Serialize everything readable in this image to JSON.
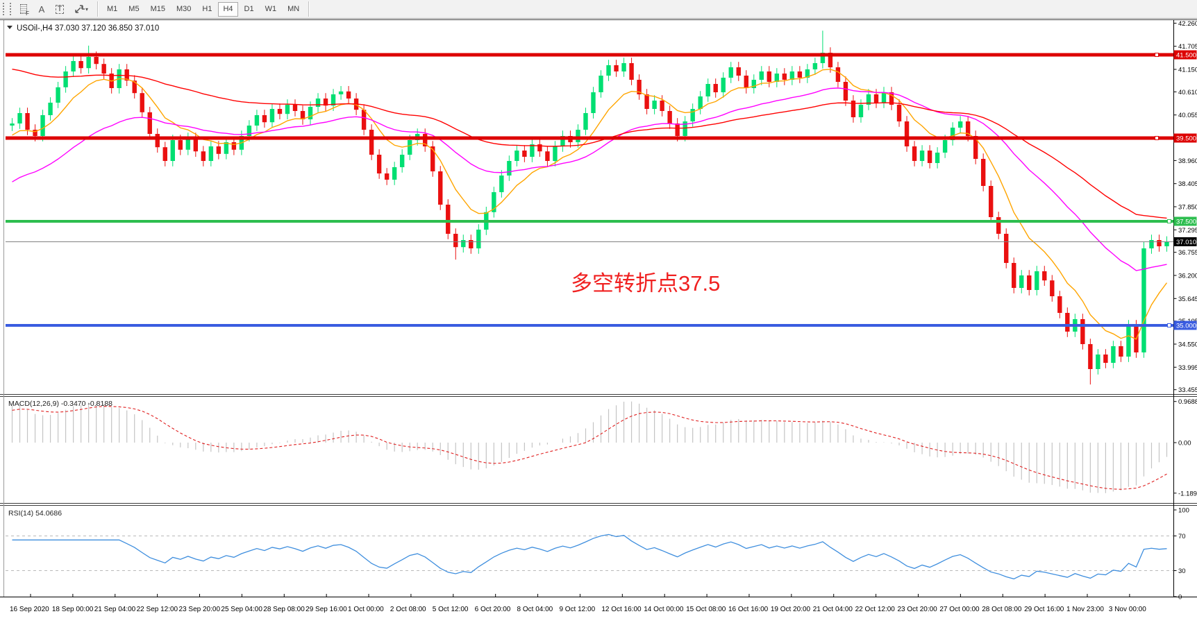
{
  "toolbar": {
    "timeframes": [
      "M1",
      "M5",
      "M15",
      "M30",
      "H1",
      "H4",
      "D1",
      "W1",
      "MN"
    ],
    "active_timeframe": "H4",
    "tools": {
      "grid_letter": "F",
      "annotation_letter": "A",
      "textbox_letter": "T",
      "caret": "▾"
    }
  },
  "chart": {
    "title": "USOil-,H4  37.030 37.120 36.850 37.010",
    "dropdown_glyph": "▼",
    "annotation": {
      "text": "多空转折点37.5"
    },
    "current_price": {
      "value": 37.01,
      "label": "37.010"
    },
    "price_ticks": [
      "42.260",
      "41.705",
      "41.150",
      "40.610",
      "40.055",
      "38.960",
      "38.405",
      "37.850",
      "37.295",
      "36.755",
      "36.200",
      "35.645",
      "35.105",
      "34.550",
      "33.995",
      "33.455"
    ],
    "hlines": [
      {
        "price": 41.5,
        "label": "41.500",
        "color": "#dd0000",
        "width": 5,
        "handle_x": 1666
      },
      {
        "price": 39.5,
        "label": "39.500",
        "color": "#dd0000",
        "width": 5,
        "handle_x": 1666
      },
      {
        "price": 37.5,
        "label": "37.500",
        "color": "#2dbe4f",
        "width": 4,
        "handle_x": 1684
      },
      {
        "price": 35.0,
        "label": "35.000",
        "color": "#3a5ce0",
        "width": 4,
        "handle_x": 1684
      }
    ],
    "colors": {
      "up": "#00df72",
      "down": "#ea1010",
      "ma_orange": "#ffa500",
      "ma_magenta": "#ff00ff",
      "ma_red": "#ff0000",
      "current_line": "#808080",
      "badge_black": "#000000",
      "macd_hist": "#c4c4c4",
      "macd_signal": "#e02020",
      "rsi_line": "#3e8ede",
      "annotation": "#f02020"
    }
  },
  "macd": {
    "label": "MACD(12,26,9) -0.3470 -0.8188",
    "params": [
      12,
      26,
      9
    ],
    "values": [
      -0.347,
      -0.8188
    ],
    "axis": [
      {
        "v": 0.9688,
        "label": "0.9688"
      },
      {
        "v": 0,
        "label": "0.00"
      },
      {
        "v": -1.1896,
        "label": "-1.1896"
      }
    ]
  },
  "rsi": {
    "label": "RSI(14) 54.0686",
    "period": 14,
    "value": 54.0686,
    "axis": [
      {
        "v": 100,
        "label": "100"
      },
      {
        "v": 70,
        "label": "70"
      },
      {
        "v": 30,
        "label": "30"
      },
      {
        "v": 0,
        "label": "0"
      }
    ],
    "grid_levels": [
      70,
      30
    ]
  },
  "chart_data": {
    "type": "candlestick",
    "symbol": "USOil",
    "timeframe": "H4",
    "current_ohlc": {
      "open": 37.03,
      "high": 37.12,
      "low": 36.85,
      "close": 37.01
    },
    "ylim": [
      33.455,
      42.26
    ],
    "horizontal_levels": [
      41.5,
      39.5,
      37.5,
      35.0
    ],
    "first_open": 39.8,
    "default_wick": 0.13,
    "closes": [
      39.85,
      40.1,
      39.7,
      39.55,
      40.05,
      40.35,
      40.72,
      41.1,
      41.35,
      41.18,
      41.45,
      41.28,
      41.05,
      40.7,
      41.15,
      40.88,
      40.58,
      40.12,
      39.6,
      39.28,
      38.95,
      39.45,
      39.22,
      39.5,
      39.18,
      38.95,
      39.3,
      39.12,
      39.4,
      39.22,
      39.55,
      39.8,
      40.05,
      39.88,
      40.2,
      40.08,
      40.3,
      40.15,
      39.95,
      40.25,
      40.45,
      40.28,
      40.55,
      40.62,
      40.45,
      40.18,
      39.7,
      39.1,
      38.65,
      38.5,
      38.8,
      39.1,
      39.45,
      39.6,
      39.3,
      38.7,
      37.9,
      37.2,
      36.88,
      37.05,
      36.85,
      37.3,
      37.72,
      38.2,
      38.6,
      38.95,
      39.2,
      39.05,
      39.35,
      39.18,
      38.95,
      39.3,
      39.55,
      39.4,
      39.7,
      40.1,
      40.6,
      41.0,
      41.25,
      41.1,
      41.3,
      40.9,
      40.55,
      40.2,
      40.4,
      40.15,
      39.85,
      39.55,
      39.9,
      40.2,
      40.5,
      40.8,
      40.6,
      40.95,
      41.2,
      41.0,
      40.7,
      40.9,
      41.1,
      40.85,
      41.05,
      40.9,
      41.1,
      40.95,
      41.15,
      41.3,
      41.55,
      41.2,
      40.85,
      40.4,
      40.0,
      40.3,
      40.55,
      40.35,
      40.6,
      40.3,
      39.9,
      39.3,
      38.95,
      39.2,
      38.9,
      39.15,
      39.45,
      39.75,
      39.9,
      39.55,
      39.0,
      38.35,
      37.6,
      37.2,
      36.5,
      35.9,
      36.2,
      35.85,
      36.3,
      36.08,
      35.7,
      35.3,
      34.85,
      35.15,
      34.55,
      33.95,
      34.3,
      34.1,
      34.5,
      34.25,
      35.0,
      34.35,
      36.85,
      37.05,
      36.9,
      37.01
    ],
    "wick_overrides": {
      "10": [
        41.72,
        null
      ],
      "58": [
        null,
        36.58
      ],
      "106": [
        42.08,
        null
      ],
      "141": [
        null,
        33.58
      ],
      "148": [
        37.0,
        null
      ]
    },
    "moving_averages": [
      {
        "name": "fast",
        "period": 9,
        "seed": 39.5,
        "color_key": "ma_orange"
      },
      {
        "name": "mid",
        "period": 30,
        "seed": 38.35,
        "color_key": "ma_magenta"
      },
      {
        "name": "slow",
        "period": 60,
        "seed": 41.2,
        "color_key": "ma_red"
      }
    ],
    "x_labels": [
      "16 Sep 2020",
      "18 Sep 00:00",
      "21 Sep 04:00",
      "22 Sep 12:00",
      "23 Sep 20:00",
      "25 Sep 04:00",
      "28 Sep 08:00",
      "29 Sep 16:00",
      "1 Oct 00:00",
      "2 Oct 08:00",
      "5 Oct 12:00",
      "6 Oct 20:00",
      "8 Oct 04:00",
      "9 Oct 12:00",
      "12 Oct 16:00",
      "14 Oct 00:00",
      "15 Oct 08:00",
      "16 Oct 16:00",
      "19 Oct 20:00",
      "21 Oct 04:00",
      "22 Oct 12:00",
      "23 Oct 20:00",
      "27 Oct 00:00",
      "28 Oct 08:00",
      "29 Oct 16:00",
      "1 Nov 23:00",
      "3 Nov 00:00"
    ]
  }
}
